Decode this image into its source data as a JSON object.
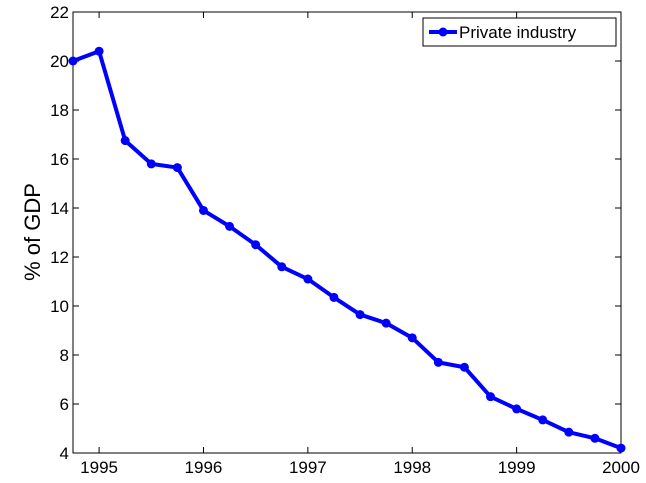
{
  "chart_data": {
    "type": "line",
    "y_label": "% of GDP",
    "x": [
      1994.75,
      1995,
      1995.25,
      1995.5,
      1995.75,
      1996,
      1996.25,
      1996.5,
      1996.75,
      1997,
      1997.25,
      1997.5,
      1997.75,
      1998,
      1998.25,
      1998.5,
      1998.75,
      1999,
      1999.25,
      1999.5,
      1999.75,
      2000
    ],
    "series": [
      {
        "name": "Private industry",
        "color": "#0000ff",
        "values": [
          20.0,
          20.4,
          16.75,
          15.8,
          15.65,
          13.9,
          13.25,
          12.5,
          11.6,
          11.1,
          10.35,
          9.65,
          9.3,
          8.7,
          7.7,
          7.5,
          6.3,
          5.8,
          5.35,
          4.85,
          4.6,
          4.2
        ]
      }
    ],
    "xlim": [
      1994.75,
      2000
    ],
    "xticks": [
      1995,
      1996,
      1997,
      1998,
      1999,
      2000
    ],
    "ylim": [
      4,
      22
    ],
    "yticks": [
      4,
      6,
      8,
      10,
      12,
      14,
      16,
      18,
      20,
      22
    ],
    "grid": false,
    "legend": "northeast"
  }
}
